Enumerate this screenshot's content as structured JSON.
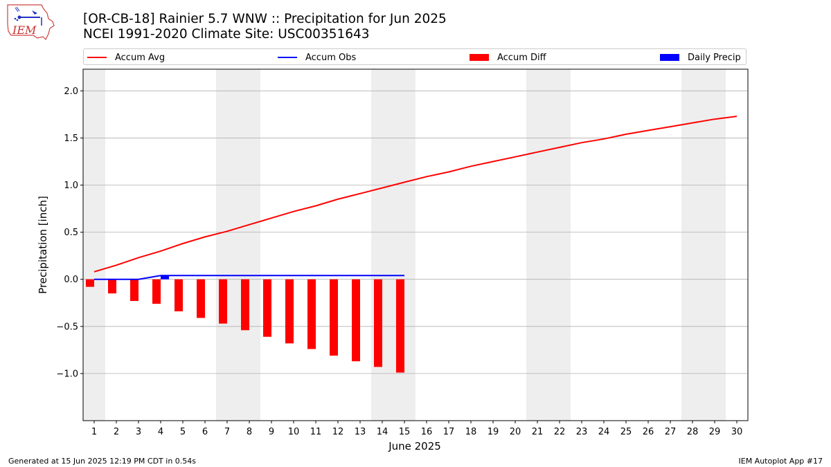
{
  "title": "[OR-CB-18] Rainier 5.7 WNW :: Precipitation for Jun 2025",
  "subtitle": "NCEI 1991-2020 Climate Site: USC00351643",
  "logo_text": "IEM",
  "footer_left": "Generated at 15 Jun 2025 12:19 PM CDT in 0.54s",
  "footer_right": "IEM Autoplot App #17",
  "colors": {
    "accum_avg": "#ff0000",
    "accum_obs": "#0000ff",
    "accum_diff": "#ff0000",
    "daily_precip": "#0000ff",
    "weekend_band": "#eeeeee",
    "grid": "#b0b0b0"
  },
  "legend": [
    {
      "label": "Accum Avg",
      "kind": "line",
      "color": "#ff0000"
    },
    {
      "label": "Accum Obs",
      "kind": "line",
      "color": "#0000ff"
    },
    {
      "label": "Accum Diff",
      "kind": "patch",
      "color": "#ff0000"
    },
    {
      "label": "Daily Precip",
      "kind": "patch",
      "color": "#0000ff"
    }
  ],
  "chart_data": {
    "type": "bar",
    "xlabel": "June 2025",
    "ylabel": "Precipitation [inch]",
    "xlim": [
      0.5,
      30.5
    ],
    "ylim": [
      -1.5,
      2.23
    ],
    "yticks": [
      -1.0,
      -0.5,
      0.0,
      0.5,
      1.0,
      1.5,
      2.0
    ],
    "ytick_labels": [
      "−1.0",
      "−0.5",
      "0.0",
      "0.5",
      "1.0",
      "1.5",
      "2.0"
    ],
    "xticks": [
      1,
      2,
      3,
      4,
      5,
      6,
      7,
      8,
      9,
      10,
      11,
      12,
      13,
      14,
      15,
      16,
      17,
      18,
      19,
      20,
      21,
      22,
      23,
      24,
      25,
      26,
      27,
      28,
      29,
      30
    ],
    "grid": "horizontal",
    "legend_position": "top",
    "weekend_bands": [
      [
        1,
        1
      ],
      [
        7,
        8
      ],
      [
        14,
        15
      ],
      [
        21,
        22
      ],
      [
        28,
        29
      ]
    ],
    "series": [
      {
        "name": "Accum Avg",
        "type": "line",
        "x": [
          1,
          2,
          3,
          4,
          5,
          6,
          7,
          8,
          9,
          10,
          11,
          12,
          13,
          14,
          15,
          16,
          17,
          18,
          19,
          20,
          21,
          22,
          23,
          24,
          25,
          26,
          27,
          28,
          29,
          30
        ],
        "values": [
          0.08,
          0.15,
          0.23,
          0.3,
          0.38,
          0.45,
          0.51,
          0.58,
          0.65,
          0.72,
          0.78,
          0.85,
          0.91,
          0.97,
          1.03,
          1.09,
          1.14,
          1.2,
          1.25,
          1.3,
          1.35,
          1.4,
          1.45,
          1.49,
          1.54,
          1.58,
          1.62,
          1.66,
          1.7,
          1.73
        ]
      },
      {
        "name": "Accum Obs",
        "type": "line",
        "x": [
          1,
          2,
          3,
          4,
          5,
          6,
          7,
          8,
          9,
          10,
          11,
          12,
          13,
          14,
          15
        ],
        "values": [
          0.0,
          0.0,
          0.0,
          0.04,
          0.04,
          0.04,
          0.04,
          0.04,
          0.04,
          0.04,
          0.04,
          0.04,
          0.04,
          0.04,
          0.04
        ]
      },
      {
        "name": "Accum Diff",
        "type": "bar",
        "x": [
          1,
          2,
          3,
          4,
          5,
          6,
          7,
          8,
          9,
          10,
          11,
          12,
          13,
          14,
          15
        ],
        "values": [
          -0.08,
          -0.15,
          -0.23,
          -0.26,
          -0.34,
          -0.41,
          -0.47,
          -0.54,
          -0.61,
          -0.68,
          -0.74,
          -0.81,
          -0.87,
          -0.93,
          -0.99
        ]
      },
      {
        "name": "Daily Precip",
        "type": "bar",
        "x": [
          4
        ],
        "values": [
          0.04
        ]
      }
    ]
  }
}
